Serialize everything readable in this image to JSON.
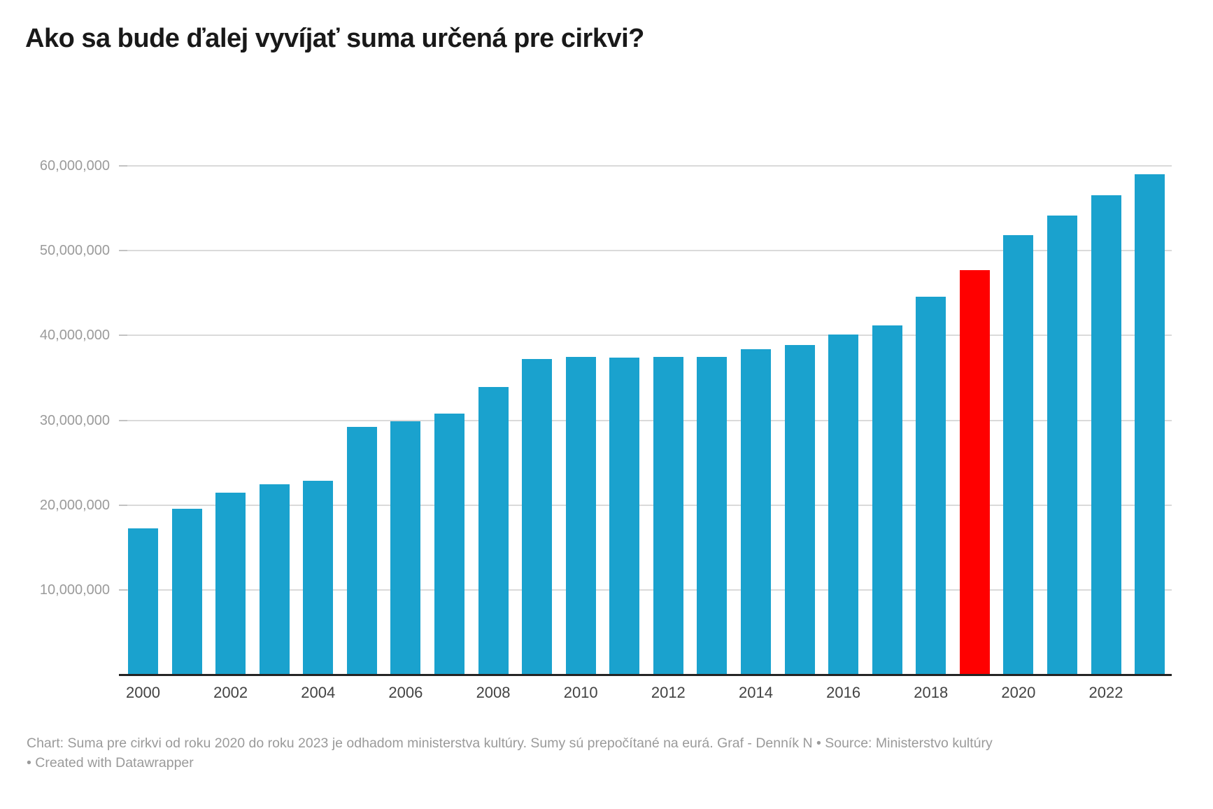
{
  "header": {
    "title": "Ako sa bude ďalej vyvíjať suma určená pre cirkvi?"
  },
  "footer": {
    "line1": "Chart: Suma pre cirkvi od roku 2020 do roku 2023 je odhadom ministerstva kultúry. Sumy sú prepočítané na eurá. Graf - Denník N • Source: Ministerstvo kultúry",
    "line2": "• Created with Datawrapper"
  },
  "chart_data": {
    "type": "bar",
    "title": "Ako sa bude ďalej vyvíjať suma určená pre cirkvi?",
    "categories": [
      "2000",
      "2001",
      "2002",
      "2003",
      "2004",
      "2005",
      "2006",
      "2007",
      "2008",
      "2009",
      "2010",
      "2011",
      "2012",
      "2013",
      "2014",
      "2015",
      "2016",
      "2017",
      "2018",
      "2019",
      "2020",
      "2021",
      "2022",
      "2023"
    ],
    "values": [
      17300000,
      19600000,
      21500000,
      22500000,
      22900000,
      29200000,
      29900000,
      30800000,
      33900000,
      37200000,
      37500000,
      37400000,
      37500000,
      37500000,
      38400000,
      38900000,
      40100000,
      41200000,
      44600000,
      47700000,
      51800000,
      54100000,
      56500000,
      59000000
    ],
    "highlighted_category": "2019",
    "colors": {
      "bar": "#1aa2ce",
      "highlight": "#ff0000",
      "gridline": "#dadada",
      "axis_line": "#242424",
      "y_label": "#9b9b9b",
      "x_label": "#434343"
    },
    "ylim": [
      0,
      60000000
    ],
    "y_ticks": [
      {
        "value": 10000000,
        "label": "10,000,000"
      },
      {
        "value": 20000000,
        "label": "20,000,000"
      },
      {
        "value": 30000000,
        "label": "30,000,000"
      },
      {
        "value": 40000000,
        "label": "40,000,000"
      },
      {
        "value": 50000000,
        "label": "50,000,000"
      },
      {
        "value": 60000000,
        "label": "60,000,000"
      }
    ],
    "x_ticks": [
      "2000",
      "2002",
      "2004",
      "2006",
      "2008",
      "2010",
      "2012",
      "2014",
      "2016",
      "2018",
      "2020",
      "2022"
    ],
    "grid": true,
    "legend": "none"
  }
}
